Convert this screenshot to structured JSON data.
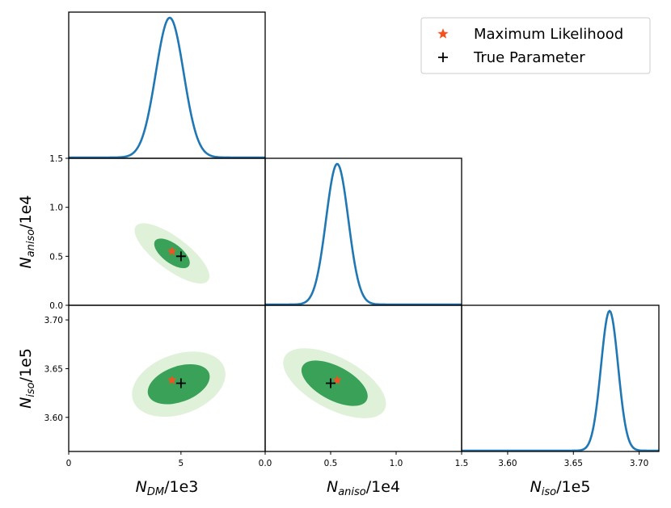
{
  "chart_data": {
    "type": "corner",
    "parameters": [
      {
        "key": "ndm",
        "label_base": "N",
        "label_sub": "DM",
        "label_suffix": "/1e3",
        "range": [
          0,
          8.75
        ],
        "ticks": [
          0,
          5
        ],
        "tick_labels": [
          "0",
          "5"
        ]
      },
      {
        "key": "naniso",
        "label_base": "N",
        "label_sub": "aniso",
        "label_suffix": "/1e4",
        "range": [
          0,
          1.5
        ],
        "ticks": [
          0.0,
          0.5,
          1.0,
          1.5
        ],
        "tick_labels": [
          "0.0",
          "0.5",
          "1.0",
          "1.5"
        ]
      },
      {
        "key": "niso",
        "label_base": "N",
        "label_sub": "iso",
        "label_suffix": "/1e5",
        "range": [
          3.565,
          3.715
        ],
        "ticks": [
          3.6,
          3.65,
          3.7
        ],
        "tick_labels": [
          "3.60",
          "3.65",
          "3.70"
        ]
      }
    ],
    "marginals": [
      {
        "param": "ndm",
        "mean": 4.5,
        "sd": 0.62
      },
      {
        "param": "naniso",
        "mean": 0.55,
        "sd": 0.085
      },
      {
        "param": "niso",
        "mean": 3.6775,
        "sd": 0.0065
      }
    ],
    "contours": [
      {
        "x": "ndm",
        "y": "naniso",
        "center": [
          4.6,
          0.53
        ],
        "sigma1": {
          "a": 26,
          "b": 12,
          "angle_deg": 37
        },
        "sigma2": {
          "a": 56,
          "b": 20,
          "angle_deg": 37
        }
      },
      {
        "x": "ndm",
        "y": "niso",
        "center": [
          4.9,
          3.634
        ],
        "sigma1": {
          "a": 40,
          "b": 22,
          "angle_deg": -20
        },
        "sigma2": {
          "a": 60,
          "b": 37,
          "angle_deg": -20
        }
      },
      {
        "x": "naniso",
        "y": "niso",
        "center": [
          0.53,
          3.635
        ],
        "sigma1": {
          "a": 45,
          "b": 21,
          "angle_deg": 28
        },
        "sigma2": {
          "a": 70,
          "b": 32,
          "angle_deg": 28
        }
      }
    ],
    "maximum_likelihood": {
      "ndm": 4.6,
      "naniso": 0.55,
      "niso": 3.638
    },
    "true_parameter": {
      "ndm": 5.0,
      "naniso": 0.5,
      "niso": 3.635
    },
    "colors": {
      "curve": "#1f77b4",
      "sigma1": "#3aa159",
      "sigma2": "#dff1d9",
      "max_likelihood": "#f4511e",
      "true_param": "#000000"
    },
    "legend": {
      "position": "top-right",
      "entries": [
        {
          "marker": "star",
          "label": "Maximum Likelihood"
        },
        {
          "marker": "plus",
          "label": "True Parameter"
        }
      ]
    }
  }
}
